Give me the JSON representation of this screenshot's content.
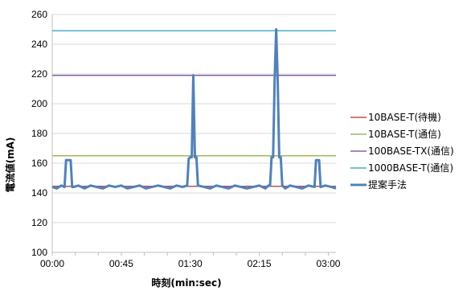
{
  "chart_data": {
    "type": "line",
    "title": "",
    "xlabel": "時刻(min:sec)",
    "ylabel": "電流値(mA)",
    "x_unit": "seconds",
    "xlim": [
      0,
      185
    ],
    "ylim": [
      100,
      260
    ],
    "y_ticks": [
      100,
      120,
      140,
      160,
      180,
      200,
      220,
      240,
      260
    ],
    "x_ticks": [
      {
        "value": 0,
        "label": "00:00"
      },
      {
        "value": 45,
        "label": "00:45"
      },
      {
        "value": 90,
        "label": "01:30"
      },
      {
        "value": 135,
        "label": "02:15"
      },
      {
        "value": 180,
        "label": "03:00"
      }
    ],
    "grid": "horizontal",
    "legend_position": "right",
    "series": [
      {
        "name": "10BASE-T(待機)",
        "color": "#c0504d",
        "x": [
          0,
          185
        ],
        "y": [
          144.5,
          144.5
        ]
      },
      {
        "name": "10BASE-T(通信)",
        "color": "#9bbb59",
        "x": [
          0,
          185
        ],
        "y": [
          165,
          165
        ]
      },
      {
        "name": "100BASE-TX(通信)",
        "color": "#8064a2",
        "x": [
          0,
          185
        ],
        "y": [
          219,
          219
        ]
      },
      {
        "name": "1000BASE-T(通信)",
        "color": "#4bacc6",
        "x": [
          0,
          185
        ],
        "y": [
          249,
          249
        ]
      },
      {
        "name": "提案手法",
        "color": "#4f81bd",
        "x": [
          0,
          3,
          6,
          8,
          9,
          10,
          11,
          12,
          13,
          14,
          17,
          21,
          25,
          29,
          33,
          37,
          41,
          45,
          49,
          53,
          57,
          61,
          65,
          69,
          73,
          77,
          81,
          85,
          88,
          89,
          90,
          91,
          92,
          93,
          94,
          95,
          99,
          103,
          107,
          111,
          115,
          119,
          123,
          127,
          131,
          135,
          139,
          141,
          142,
          143,
          144,
          145,
          146,
          147,
          148,
          149,
          150,
          151,
          152,
          155,
          159,
          163,
          167,
          171,
          172,
          173,
          174,
          175,
          178,
          182,
          185
        ],
        "y": [
          144,
          143,
          145,
          144,
          162,
          162,
          162,
          162,
          144,
          144,
          145,
          143,
          145,
          144,
          143,
          145,
          144,
          145,
          143,
          144,
          145,
          143,
          144,
          145,
          144,
          143,
          145,
          144,
          145,
          163,
          164,
          164,
          219,
          164,
          164,
          145,
          144,
          143,
          145,
          144,
          143,
          145,
          144,
          143,
          144,
          145,
          143,
          145,
          145,
          164,
          164,
          216,
          250,
          216,
          164,
          164,
          145,
          144,
          143,
          145,
          144,
          143,
          145,
          144,
          162,
          162,
          162,
          144,
          145,
          144,
          143
        ]
      }
    ]
  }
}
